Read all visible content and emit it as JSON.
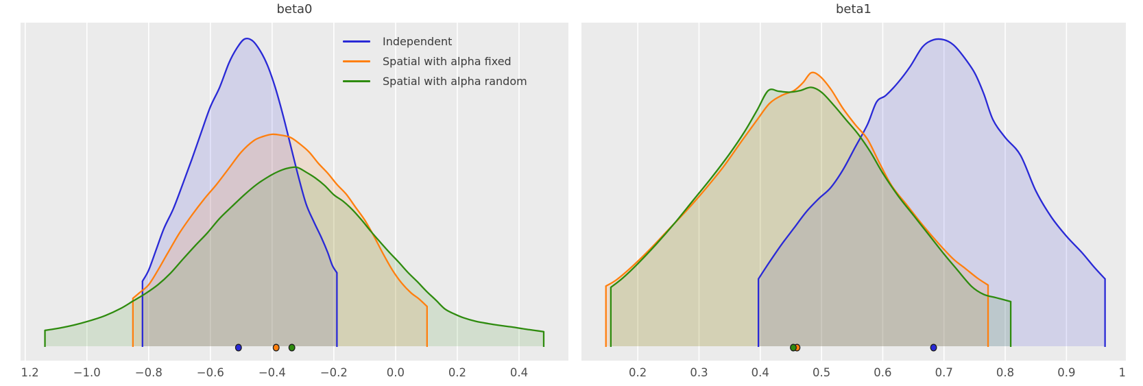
{
  "styles": {
    "panel_bg": "#ebebeb",
    "grid_color": "#ffffff",
    "title_color": "#3a3a3a",
    "tick_color": "#4d4d4d",
    "marker_edge": "#1c1c1c",
    "fill_opacity": 0.13,
    "series_colors": {
      "blue": "#2929d6",
      "orange": "#ff7f0e",
      "green": "#2e8b0e"
    }
  },
  "legend": {
    "items": [
      {
        "label": "Independent",
        "color": "#2929d6"
      },
      {
        "label": "Spatial with alpha fixed",
        "color": "#ff7f0e"
      },
      {
        "label": "Spatial with alpha random",
        "color": "#2e8b0e"
      }
    ]
  },
  "chart_data": [
    {
      "type": "area",
      "subtype": "kde-density-with-hdi",
      "title": "beta0",
      "xlim": [
        -1.215,
        0.56
      ],
      "ylim": [
        0,
        1.0
      ],
      "grid": "vertical-only",
      "xticks": [
        {
          "v": -1.2,
          "label": "−1.2"
        },
        {
          "v": -1.0,
          "label": "−1.0"
        },
        {
          "v": -0.8,
          "label": "−0.8"
        },
        {
          "v": -0.6,
          "label": "−0.6"
        },
        {
          "v": -0.4,
          "label": "−0.4"
        },
        {
          "v": -0.2,
          "label": "−0.2"
        },
        {
          "v": 0.0,
          "label": "0.0"
        },
        {
          "v": 0.2,
          "label": "0.2"
        },
        {
          "v": 0.4,
          "label": "0.4"
        }
      ],
      "series": [
        {
          "name": "Independent",
          "color": "#2929d6",
          "hdi": [
            -0.82,
            -0.19
          ],
          "point_estimate": -0.509,
          "points": [
            [
              -0.82,
              0.201
            ],
            [
              -0.8,
              0.235
            ],
            [
              -0.775,
              0.3
            ],
            [
              -0.75,
              0.365
            ],
            [
              -0.72,
              0.425
            ],
            [
              -0.69,
              0.5
            ],
            [
              -0.66,
              0.578
            ],
            [
              -0.63,
              0.66
            ],
            [
              -0.6,
              0.74
            ],
            [
              -0.57,
              0.8
            ],
            [
              -0.54,
              0.875
            ],
            [
              -0.515,
              0.92
            ],
            [
              -0.49,
              0.949
            ],
            [
              -0.465,
              0.945
            ],
            [
              -0.44,
              0.915
            ],
            [
              -0.415,
              0.868
            ],
            [
              -0.39,
              0.8
            ],
            [
              -0.365,
              0.715
            ],
            [
              -0.34,
              0.62
            ],
            [
              -0.315,
              0.525
            ],
            [
              -0.29,
              0.44
            ],
            [
              -0.265,
              0.385
            ],
            [
              -0.24,
              0.335
            ],
            [
              -0.22,
              0.29
            ],
            [
              -0.205,
              0.25
            ],
            [
              -0.19,
              0.227
            ]
          ]
        },
        {
          "name": "Spatial with alpha fixed",
          "color": "#ff7f0e",
          "hdi": [
            -0.851,
            0.102
          ],
          "point_estimate": -0.387,
          "points": [
            [
              -0.851,
              0.148
            ],
            [
              -0.83,
              0.165
            ],
            [
              -0.8,
              0.19
            ],
            [
              -0.77,
              0.235
            ],
            [
              -0.74,
              0.285
            ],
            [
              -0.7,
              0.35
            ],
            [
              -0.66,
              0.405
            ],
            [
              -0.62,
              0.455
            ],
            [
              -0.58,
              0.5
            ],
            [
              -0.54,
              0.55
            ],
            [
              -0.5,
              0.6
            ],
            [
              -0.46,
              0.635
            ],
            [
              -0.43,
              0.648
            ],
            [
              -0.4,
              0.655
            ],
            [
              -0.37,
              0.652
            ],
            [
              -0.34,
              0.645
            ],
            [
              -0.31,
              0.625
            ],
            [
              -0.28,
              0.6
            ],
            [
              -0.25,
              0.565
            ],
            [
              -0.22,
              0.535
            ],
            [
              -0.19,
              0.5
            ],
            [
              -0.16,
              0.47
            ],
            [
              -0.13,
              0.43
            ],
            [
              -0.1,
              0.39
            ],
            [
              -0.07,
              0.34
            ],
            [
              -0.04,
              0.285
            ],
            [
              -0.01,
              0.235
            ],
            [
              0.02,
              0.195
            ],
            [
              0.05,
              0.165
            ],
            [
              0.075,
              0.147
            ],
            [
              0.102,
              0.123
            ]
          ]
        },
        {
          "name": "Spatial with alpha random",
          "color": "#2e8b0e",
          "hdi": [
            -1.136,
            0.48
          ],
          "point_estimate": -0.336,
          "points": [
            [
              -1.136,
              0.049
            ],
            [
              -1.09,
              0.056
            ],
            [
              -1.04,
              0.066
            ],
            [
              -0.99,
              0.079
            ],
            [
              -0.94,
              0.095
            ],
            [
              -0.89,
              0.117
            ],
            [
              -0.85,
              0.14
            ],
            [
              -0.81,
              0.163
            ],
            [
              -0.77,
              0.19
            ],
            [
              -0.73,
              0.225
            ],
            [
              -0.69,
              0.268
            ],
            [
              -0.65,
              0.31
            ],
            [
              -0.61,
              0.35
            ],
            [
              -0.57,
              0.395
            ],
            [
              -0.53,
              0.432
            ],
            [
              -0.49,
              0.468
            ],
            [
              -0.45,
              0.5
            ],
            [
              -0.41,
              0.525
            ],
            [
              -0.38,
              0.54
            ],
            [
              -0.35,
              0.55
            ],
            [
              -0.32,
              0.553
            ],
            [
              -0.29,
              0.538
            ],
            [
              -0.26,
              0.52
            ],
            [
              -0.23,
              0.497
            ],
            [
              -0.2,
              0.468
            ],
            [
              -0.17,
              0.448
            ],
            [
              -0.14,
              0.422
            ],
            [
              -0.11,
              0.39
            ],
            [
              -0.08,
              0.355
            ],
            [
              -0.05,
              0.322
            ],
            [
              -0.02,
              0.29
            ],
            [
              0.01,
              0.26
            ],
            [
              0.04,
              0.228
            ],
            [
              0.07,
              0.2
            ],
            [
              0.1,
              0.17
            ],
            [
              0.13,
              0.143
            ],
            [
              0.16,
              0.115
            ],
            [
              0.19,
              0.1
            ],
            [
              0.22,
              0.088
            ],
            [
              0.26,
              0.077
            ],
            [
              0.3,
              0.07
            ],
            [
              0.34,
              0.064
            ],
            [
              0.38,
              0.059
            ],
            [
              0.42,
              0.053
            ],
            [
              0.45,
              0.049
            ],
            [
              0.48,
              0.045
            ]
          ]
        }
      ]
    },
    {
      "type": "area",
      "subtype": "kde-density-with-hdi",
      "title": "beta1",
      "xlim": [
        0.108,
        0.997
      ],
      "ylim": [
        0,
        1.0
      ],
      "grid": "vertical-only",
      "xticks": [
        {
          "v": 0.2,
          "label": "0.2"
        },
        {
          "v": 0.3,
          "label": "0.3"
        },
        {
          "v": 0.4,
          "label": "0.4"
        },
        {
          "v": 0.5,
          "label": "0.5"
        },
        {
          "v": 0.6,
          "label": "0.6"
        },
        {
          "v": 0.7,
          "label": "0.7"
        },
        {
          "v": 0.8,
          "label": "0.8"
        },
        {
          "v": 0.9,
          "label": "0.9"
        },
        {
          "v": 1.0,
          "label": "1.0"
        }
      ],
      "series": [
        {
          "name": "Independent",
          "color": "#2929d6",
          "hdi": [
            0.397,
            0.963
          ],
          "point_estimate": 0.683,
          "points": [
            [
              0.397,
              0.208
            ],
            [
              0.415,
              0.26
            ],
            [
              0.435,
              0.315
            ],
            [
              0.455,
              0.365
            ],
            [
              0.475,
              0.415
            ],
            [
              0.495,
              0.455
            ],
            [
              0.515,
              0.49
            ],
            [
              0.535,
              0.545
            ],
            [
              0.555,
              0.615
            ],
            [
              0.575,
              0.685
            ],
            [
              0.59,
              0.755
            ],
            [
              0.605,
              0.775
            ],
            [
              0.625,
              0.815
            ],
            [
              0.645,
              0.865
            ],
            [
              0.665,
              0.925
            ],
            [
              0.683,
              0.947
            ],
            [
              0.7,
              0.947
            ],
            [
              0.715,
              0.932
            ],
            [
              0.73,
              0.9
            ],
            [
              0.75,
              0.845
            ],
            [
              0.765,
              0.78
            ],
            [
              0.78,
              0.7
            ],
            [
              0.8,
              0.645
            ],
            [
              0.825,
              0.59
            ],
            [
              0.85,
              0.48
            ],
            [
              0.875,
              0.4
            ],
            [
              0.9,
              0.34
            ],
            [
              0.925,
              0.29
            ],
            [
              0.945,
              0.245
            ],
            [
              0.963,
              0.208
            ]
          ]
        },
        {
          "name": "Spatial with alpha fixed",
          "color": "#ff7f0e",
          "hdi": [
            0.148,
            0.772
          ],
          "point_estimate": 0.46,
          "points": [
            [
              0.148,
              0.186
            ],
            [
              0.165,
              0.205
            ],
            [
              0.19,
              0.245
            ],
            [
              0.22,
              0.3
            ],
            [
              0.25,
              0.36
            ],
            [
              0.28,
              0.42
            ],
            [
              0.31,
              0.485
            ],
            [
              0.34,
              0.555
            ],
            [
              0.37,
              0.635
            ],
            [
              0.395,
              0.7
            ],
            [
              0.415,
              0.75
            ],
            [
              0.435,
              0.775
            ],
            [
              0.455,
              0.79
            ],
            [
              0.47,
              0.815
            ],
            [
              0.483,
              0.845
            ],
            [
              0.497,
              0.835
            ],
            [
              0.515,
              0.795
            ],
            [
              0.535,
              0.735
            ],
            [
              0.555,
              0.685
            ],
            [
              0.575,
              0.64
            ],
            [
              0.595,
              0.565
            ],
            [
              0.615,
              0.495
            ],
            [
              0.64,
              0.435
            ],
            [
              0.665,
              0.375
            ],
            [
              0.69,
              0.32
            ],
            [
              0.715,
              0.27
            ],
            [
              0.735,
              0.24
            ],
            [
              0.755,
              0.21
            ],
            [
              0.772,
              0.189
            ]
          ]
        },
        {
          "name": "Spatial with alpha random",
          "color": "#2e8b0e",
          "hdi": [
            0.156,
            0.809
          ],
          "point_estimate": 0.454,
          "points": [
            [
              0.156,
              0.182
            ],
            [
              0.175,
              0.21
            ],
            [
              0.2,
              0.255
            ],
            [
              0.23,
              0.315
            ],
            [
              0.26,
              0.38
            ],
            [
              0.29,
              0.45
            ],
            [
              0.32,
              0.52
            ],
            [
              0.35,
              0.595
            ],
            [
              0.375,
              0.665
            ],
            [
              0.395,
              0.73
            ],
            [
              0.413,
              0.79
            ],
            [
              0.43,
              0.788
            ],
            [
              0.447,
              0.785
            ],
            [
              0.465,
              0.79
            ],
            [
              0.483,
              0.8
            ],
            [
              0.5,
              0.785
            ],
            [
              0.52,
              0.745
            ],
            [
              0.54,
              0.7
            ],
            [
              0.56,
              0.655
            ],
            [
              0.58,
              0.6
            ],
            [
              0.6,
              0.535
            ],
            [
              0.625,
              0.465
            ],
            [
              0.65,
              0.405
            ],
            [
              0.675,
              0.345
            ],
            [
              0.7,
              0.285
            ],
            [
              0.72,
              0.24
            ],
            [
              0.745,
              0.185
            ],
            [
              0.765,
              0.16
            ],
            [
              0.785,
              0.15
            ],
            [
              0.809,
              0.138
            ]
          ]
        }
      ]
    }
  ]
}
